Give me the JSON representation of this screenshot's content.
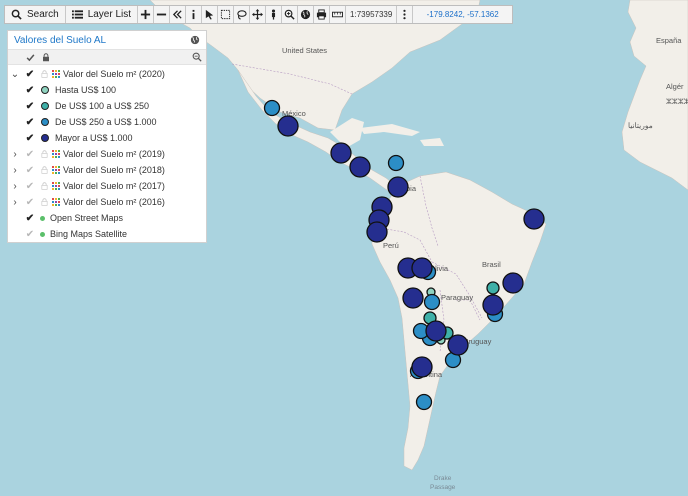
{
  "toolbar": {
    "search_label": "Search",
    "layer_list_label": "Layer List",
    "scale": "1:73957339",
    "coordinates": "-179.8242, -57.1362"
  },
  "panel": {
    "title": "Valores del Suelo AL",
    "layers": [
      {
        "label": "Valor del Suelo m² (2020)",
        "expanded": true,
        "visible": true
      },
      {
        "label": "Valor del Suelo m² (2019)",
        "expanded": false,
        "visible": false
      },
      {
        "label": "Valor del Suelo m² (2018)",
        "expanded": false,
        "visible": false
      },
      {
        "label": "Valor del Suelo m² (2017)",
        "expanded": false,
        "visible": false
      },
      {
        "label": "Valor del Suelo m² (2016)",
        "expanded": false,
        "visible": false
      }
    ],
    "legend": [
      {
        "label": "Hasta US$ 100",
        "color": "#8fd3c0"
      },
      {
        "label": "De US$ 100 a US$ 250",
        "color": "#3fb0a8"
      },
      {
        "label": "De US$ 250 a US$ 1.000",
        "color": "#2c8ec6"
      },
      {
        "label": "Mayor a US$ 1.000",
        "color": "#252e8f"
      }
    ],
    "basemaps": [
      {
        "label": "Open Street Maps",
        "visible": true
      },
      {
        "label": "Bing Maps Satellite",
        "visible": false
      }
    ]
  },
  "map_labels": {
    "united_states": "United States",
    "mexico": "México",
    "colombia": "bia",
    "peru": "Perú",
    "bolivia": "olivia",
    "brasil": "Brasil",
    "paraguay": "Paraguay",
    "uruguay": "Uruguay",
    "argentina": "Argentina",
    "espana": "España",
    "algeria": "Algér",
    "algeria_ar": "ⵣⵣⵣⵣ",
    "morocco": "موريتانيا",
    "drake_line1": "Drake",
    "drake_line2": "Passage"
  },
  "colors": {
    "ocean": "#aad3df",
    "land": "#f2efe9",
    "tier1": "#8fd3c0",
    "tier2": "#3fb0a8",
    "tier3": "#2c8ec6",
    "tier4": "#252e8f"
  },
  "markers": [
    {
      "place": "Guadalajara",
      "tier": 3
    },
    {
      "place": "Ciudad de México",
      "tier": 4
    },
    {
      "place": "Guatemala",
      "tier": 4
    },
    {
      "place": "San José",
      "tier": 4
    },
    {
      "place": "Cartagena",
      "tier": 3
    },
    {
      "place": "Bogotá",
      "tier": 4
    },
    {
      "place": "Recife",
      "tier": 4
    },
    {
      "place": "Quito",
      "tier": 4
    },
    {
      "place": "Guayaquil",
      "tier": 4
    },
    {
      "place": "Lima",
      "tier": 4
    },
    {
      "place": "La Paz",
      "tier": 4
    },
    {
      "place": "Cochabamba",
      "tier": 4
    },
    {
      "place": "Santa Cruz",
      "tier": 3
    },
    {
      "place": "Brasília",
      "tier": 4
    },
    {
      "place": "Belo Horizonte",
      "tier": 2
    },
    {
      "place": "Salta",
      "tier": 4
    },
    {
      "place": "Tucumán",
      "tier": 3
    },
    {
      "place": "Asunción",
      "tier": 1
    },
    {
      "place": "São Paulo",
      "tier": 4
    },
    {
      "place": "Curitiba",
      "tier": 3
    },
    {
      "place": "Corrientes",
      "tier": 2
    },
    {
      "place": "Córdoba",
      "tier": 4
    },
    {
      "place": "Santa Fe",
      "tier": 3
    },
    {
      "place": "Mendoza",
      "tier": 3
    },
    {
      "place": "Rosario",
      "tier": 2
    },
    {
      "place": "Paraná",
      "tier": 1
    },
    {
      "place": "Buenos Aires",
      "tier": 4
    },
    {
      "place": "Montevideo",
      "tier": 3
    },
    {
      "place": "Neuquén",
      "tier": 4
    },
    {
      "place": "Bahía Blanca",
      "tier": 3
    },
    {
      "place": "Comodoro Rivadavia",
      "tier": 3
    },
    {
      "place": "San Luis",
      "tier": 1
    }
  ]
}
